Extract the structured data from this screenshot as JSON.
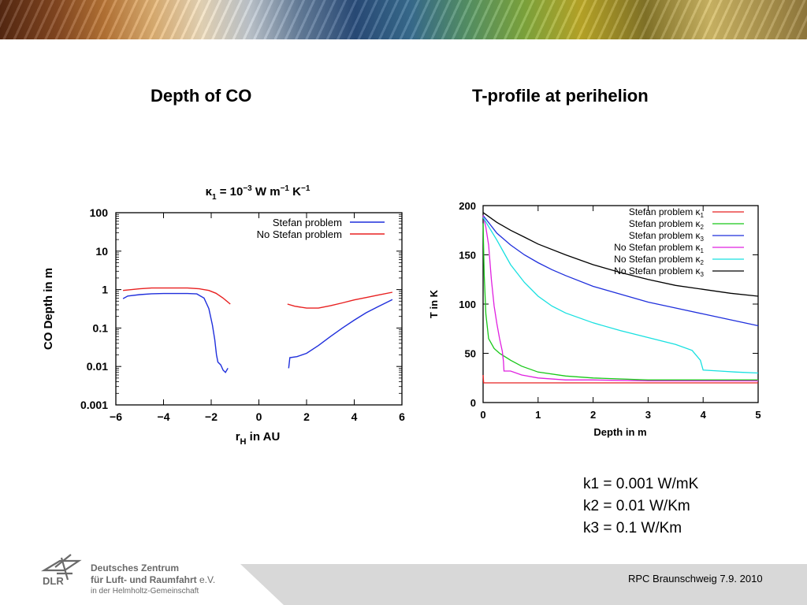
{
  "slide": {
    "title_left": "Depth of CO",
    "title_right": "T-profile at perihelion",
    "notes": [
      "k1 = 0.001 W/mK",
      "k2 = 0.01 W/Km",
      "k3 = 0.1 W/Km"
    ],
    "footer": "RPC Braunschweig 7.9. 2010",
    "logo": {
      "mark": "DLR",
      "line1": "Deutsches Zentrum",
      "line2": "für Luft- und Raumfahrt",
      "line2_suffix": "e.V.",
      "line3": "in der Helmholtz-Gemeinschaft"
    },
    "colors": {
      "text": "#000000",
      "footer_band": "#d8d8d8",
      "logo_grey": "#6a6a6a"
    }
  },
  "chart_data": [
    {
      "type": "line",
      "title": "κ1 = 10−3 W m−1 K−1",
      "xlabel": "rH in AU",
      "ylabel": "CO Depth in m",
      "xlim": [
        -6,
        6
      ],
      "ylim": [
        0.001,
        100
      ],
      "y_scale": "log",
      "x_ticks": [
        "−6",
        "−4",
        "−2",
        "0",
        "2",
        "4",
        "6"
      ],
      "y_ticks": [
        "0.001",
        "0.01",
        "0.1",
        "1",
        "10",
        "100"
      ],
      "legend_position": "top-right",
      "grid": false,
      "series": [
        {
          "name": "Stefan problem",
          "color": "#1f2fdc",
          "segments": [
            [
              [
                -5.7,
                0.58
              ],
              [
                -5.5,
                0.68
              ],
              [
                -5.0,
                0.74
              ],
              [
                -4.5,
                0.78
              ],
              [
                -4.0,
                0.79
              ],
              [
                -3.5,
                0.79
              ],
              [
                -3.0,
                0.79
              ],
              [
                -2.6,
                0.77
              ],
              [
                -2.3,
                0.6
              ],
              [
                -2.1,
                0.32
              ],
              [
                -1.95,
                0.12
              ],
              [
                -1.85,
                0.05
              ],
              [
                -1.78,
                0.02
              ],
              [
                -1.72,
                0.013
              ],
              [
                -1.6,
                0.011
              ],
              [
                -1.5,
                0.008
              ],
              [
                -1.4,
                0.007
              ],
              [
                -1.3,
                0.009
              ]
            ],
            [
              [
                1.25,
                0.009
              ],
              [
                1.3,
                0.017
              ],
              [
                1.6,
                0.018
              ],
              [
                2.0,
                0.022
              ],
              [
                2.5,
                0.035
              ],
              [
                3.0,
                0.06
              ],
              [
                3.5,
                0.1
              ],
              [
                4.0,
                0.16
              ],
              [
                4.5,
                0.25
              ],
              [
                5.0,
                0.36
              ],
              [
                5.6,
                0.55
              ]
            ]
          ]
        },
        {
          "name": "No Stefan problem",
          "color": "#e82020",
          "segments": [
            [
              [
                -5.7,
                0.95
              ],
              [
                -5.0,
                1.05
              ],
              [
                -4.5,
                1.1
              ],
              [
                -4.0,
                1.1
              ],
              [
                -3.5,
                1.1
              ],
              [
                -3.0,
                1.1
              ],
              [
                -2.5,
                1.05
              ],
              [
                -2.1,
                0.95
              ],
              [
                -1.8,
                0.8
              ],
              [
                -1.5,
                0.6
              ],
              [
                -1.2,
                0.42
              ]
            ],
            [
              [
                1.2,
                0.42
              ],
              [
                1.5,
                0.37
              ],
              [
                2.0,
                0.33
              ],
              [
                2.5,
                0.33
              ],
              [
                3.0,
                0.38
              ],
              [
                3.5,
                0.45
              ],
              [
                4.0,
                0.54
              ],
              [
                4.5,
                0.62
              ],
              [
                5.0,
                0.72
              ],
              [
                5.6,
                0.85
              ]
            ]
          ]
        }
      ]
    },
    {
      "type": "line",
      "title": "",
      "xlabel": "Depth in m",
      "ylabel": "T in K",
      "xlim": [
        0,
        5
      ],
      "ylim": [
        0,
        200
      ],
      "x_ticks": [
        "0",
        "1",
        "2",
        "3",
        "4",
        "5"
      ],
      "y_ticks": [
        "0",
        "50",
        "100",
        "150",
        "200"
      ],
      "legend_position": "top-right",
      "grid": false,
      "series": [
        {
          "name": "Stefan problem κ1",
          "label_main": "Stefan problem κ",
          "label_sub": "1",
          "color": "#e82020",
          "values": [
            [
              0,
              28
            ],
            [
              0.01,
              20
            ],
            [
              0.5,
              20
            ],
            [
              1,
              20
            ],
            [
              2,
              20
            ],
            [
              3,
              20
            ],
            [
              4,
              20
            ],
            [
              5,
              20
            ]
          ]
        },
        {
          "name": "Stefan problem κ2",
          "label_main": "Stefan problem κ",
          "label_sub": "2",
          "color": "#18c818",
          "values": [
            [
              0,
              182
            ],
            [
              0.02,
              130
            ],
            [
              0.05,
              90
            ],
            [
              0.1,
              65
            ],
            [
              0.2,
              55
            ],
            [
              0.3,
              50
            ],
            [
              0.5,
              43
            ],
            [
              0.7,
              37
            ],
            [
              1.0,
              31
            ],
            [
              1.5,
              27
            ],
            [
              2.0,
              25
            ],
            [
              3.0,
              23
            ],
            [
              4.0,
              23
            ],
            [
              5.0,
              23
            ]
          ]
        },
        {
          "name": "Stefan problem κ3",
          "label_main": "Stefan problem κ",
          "label_sub": "3",
          "color": "#1f2fdc",
          "values": [
            [
              0,
              190
            ],
            [
              0.25,
              172
            ],
            [
              0.5,
              160
            ],
            [
              0.75,
              150
            ],
            [
              1.0,
              142
            ],
            [
              1.25,
              135
            ],
            [
              1.5,
              129
            ],
            [
              2.0,
              118
            ],
            [
              2.5,
              110
            ],
            [
              3.0,
              102
            ],
            [
              3.5,
              96
            ],
            [
              4.0,
              90
            ],
            [
              4.5,
              84
            ],
            [
              5.0,
              78
            ]
          ]
        },
        {
          "name": "No Stefan problem κ1",
          "label_main": "No Stefan problem κ",
          "label_sub": "1",
          "color": "#e020e0",
          "values": [
            [
              0,
              190
            ],
            [
              0.05,
              178
            ],
            [
              0.1,
              160
            ],
            [
              0.15,
              125
            ],
            [
              0.2,
              98
            ],
            [
              0.25,
              80
            ],
            [
              0.3,
              65
            ],
            [
              0.35,
              52
            ],
            [
              0.37,
              42
            ],
            [
              0.38,
              32
            ],
            [
              0.5,
              32
            ],
            [
              0.7,
              28
            ],
            [
              1.0,
              25
            ],
            [
              1.5,
              23
            ],
            [
              2.0,
              23
            ],
            [
              3.0,
              22
            ],
            [
              4.0,
              22
            ],
            [
              5.0,
              22
            ]
          ]
        },
        {
          "name": "No Stefan problem κ2",
          "label_main": "No Stefan problem κ",
          "label_sub": "2",
          "color": "#18e0e0",
          "values": [
            [
              0,
              188
            ],
            [
              0.25,
              165
            ],
            [
              0.5,
              140
            ],
            [
              0.75,
              122
            ],
            [
              1.0,
              108
            ],
            [
              1.25,
              98
            ],
            [
              1.5,
              91
            ],
            [
              2.0,
              81
            ],
            [
              2.5,
              73
            ],
            [
              3.0,
              66
            ],
            [
              3.5,
              59
            ],
            [
              3.8,
              53
            ],
            [
              3.95,
              43
            ],
            [
              4.0,
              33
            ],
            [
              4.3,
              32
            ],
            [
              4.6,
              31
            ],
            [
              5.0,
              30
            ]
          ]
        },
        {
          "name": "No Stefan problem κ3",
          "label_main": "No Stefan problem κ",
          "label_sub": "3",
          "color": "#000000",
          "values": [
            [
              0,
              193
            ],
            [
              0.25,
              183
            ],
            [
              0.5,
              175
            ],
            [
              0.75,
              168
            ],
            [
              1.0,
              161
            ],
            [
              1.5,
              150
            ],
            [
              2.0,
              140
            ],
            [
              2.5,
              132
            ],
            [
              3.0,
              125
            ],
            [
              3.5,
              119
            ],
            [
              4.0,
              115
            ],
            [
              4.5,
              111
            ],
            [
              5.0,
              108
            ]
          ]
        }
      ]
    }
  ]
}
